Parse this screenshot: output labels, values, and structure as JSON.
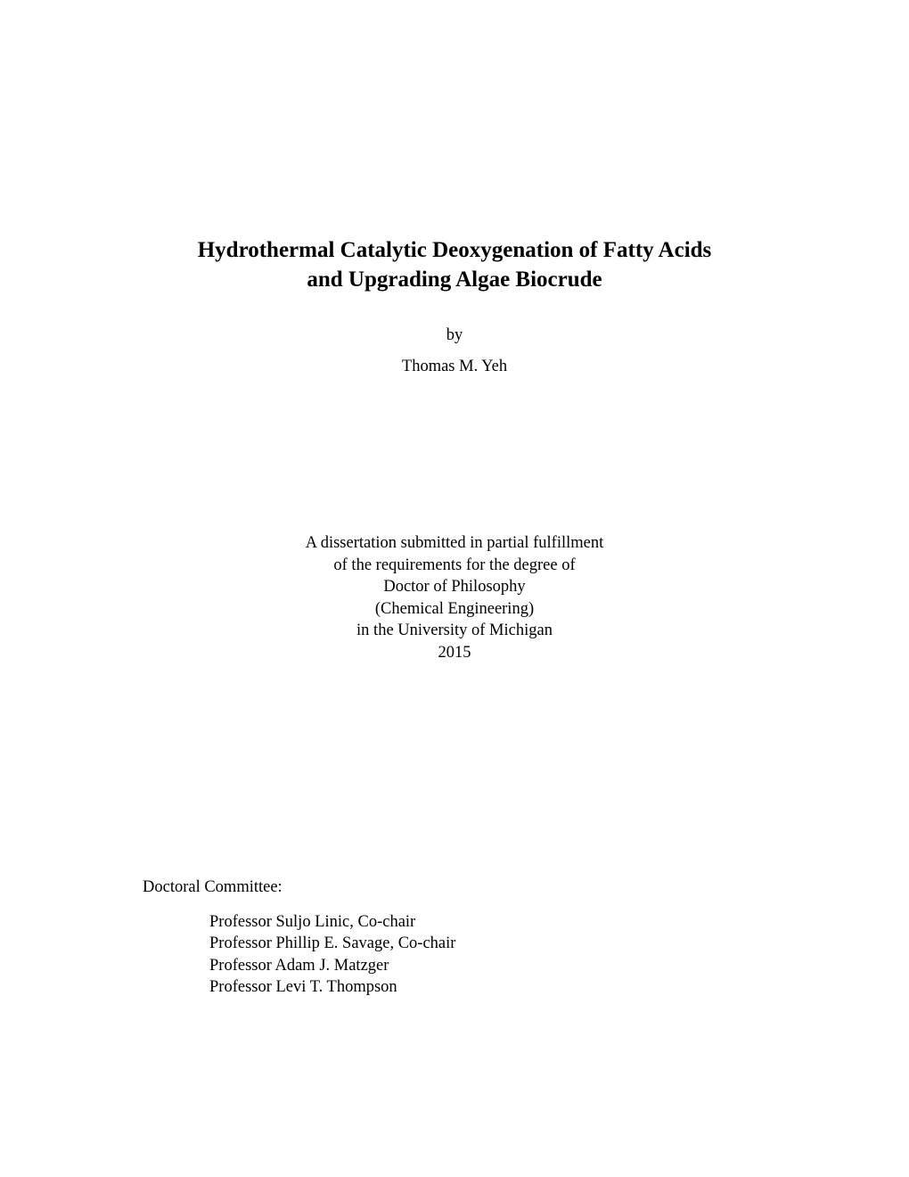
{
  "title": {
    "line1": "Hydrothermal Catalytic Deoxygenation of Fatty Acids",
    "line2": "and Upgrading Algae Biocrude"
  },
  "by": "by",
  "author": "Thomas M. Yeh",
  "submission": {
    "line1": "A dissertation submitted in partial fulfillment",
    "line2": "of the requirements for the degree of",
    "line3": "Doctor of Philosophy",
    "line4": "(Chemical Engineering)",
    "line5": "in the University of Michigan",
    "line6": "2015"
  },
  "committee": {
    "heading": "Doctoral Committee:",
    "members": {
      "0": "Professor Suljo Linic, Co-chair",
      "1": "Professor Phillip E. Savage, Co-chair",
      "2": "Professor Adam J. Matzger",
      "3": "Professor Levi T. Thompson"
    }
  }
}
